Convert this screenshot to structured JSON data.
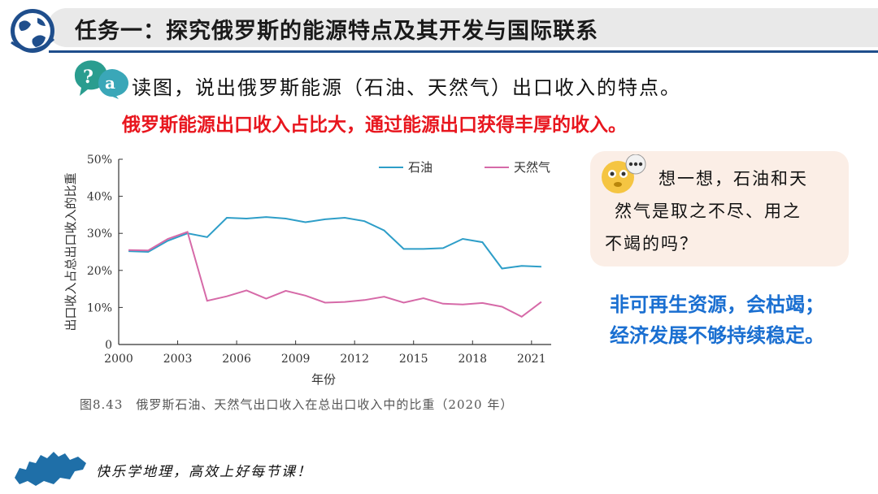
{
  "header": {
    "title": "任务一：探究俄罗斯的能源特点及其开发与国际联系"
  },
  "question": {
    "text": "读图，说出俄罗斯能源（石油、天然气）出口收入的特点。",
    "answer": "俄罗斯能源出口收入占比大，通过能源出口获得丰厚的收入。"
  },
  "chart_data": {
    "type": "line",
    "xlabel": "年份",
    "ylabel": "出口收入占总出口收入的比重",
    "x_ticks": [
      2000,
      2003,
      2006,
      2009,
      2012,
      2015,
      2018,
      2021
    ],
    "y_ticks": [
      "0",
      "10%",
      "20%",
      "30%",
      "40%",
      "50%"
    ],
    "ylim": [
      0,
      50
    ],
    "xlim": [
      2000,
      2022
    ],
    "legend_placement": "top",
    "series": [
      {
        "name": "石油",
        "color": "#2e9ec8",
        "x": [
          2000.5,
          2001.5,
          2002.5,
          2003.5,
          2004.5,
          2005.5,
          2006.5,
          2007.5,
          2008.5,
          2009.5,
          2010.5,
          2011.5,
          2012.5,
          2013.5,
          2014.5,
          2015.5,
          2016.5,
          2017.5,
          2018.5,
          2019.5,
          2020.5,
          2021.5
        ],
        "values": [
          25.2,
          25.0,
          28.0,
          30.0,
          29.0,
          34.2,
          34.0,
          34.4,
          34.0,
          33.0,
          33.8,
          34.2,
          33.3,
          30.8,
          25.8,
          25.8,
          26.0,
          28.5,
          27.6,
          20.5,
          21.2,
          21.0
        ]
      },
      {
        "name": "天然气",
        "color": "#d66aa8",
        "x": [
          2000.5,
          2001.5,
          2002.5,
          2003.5,
          2004.5,
          2005.5,
          2006.5,
          2007.5,
          2008.5,
          2009.5,
          2010.5,
          2011.5,
          2012.5,
          2013.5,
          2014.5,
          2015.5,
          2016.5,
          2017.5,
          2018.5,
          2019.5,
          2020.5,
          2021.5
        ],
        "values": [
          25.5,
          25.4,
          28.5,
          30.4,
          11.8,
          13.0,
          14.6,
          12.4,
          14.5,
          13.2,
          11.3,
          11.5,
          12.0,
          12.9,
          11.3,
          12.5,
          11.0,
          10.8,
          11.2,
          10.2,
          7.5,
          11.5
        ]
      }
    ],
    "caption": "图8.43　俄罗斯石油、天然气出口收入在总出口收入中的比重（2020 年）"
  },
  "think": {
    "line1": "想一想，石油和天",
    "line2": "然气是取之不尽、用之",
    "line3": "不竭的吗？"
  },
  "answer2": {
    "line1": "非可再生资源，会枯竭；",
    "line2": "经济发展不够持续稳定。"
  },
  "footer": {
    "slogan": "快乐学地理，高效上好每节课！"
  }
}
